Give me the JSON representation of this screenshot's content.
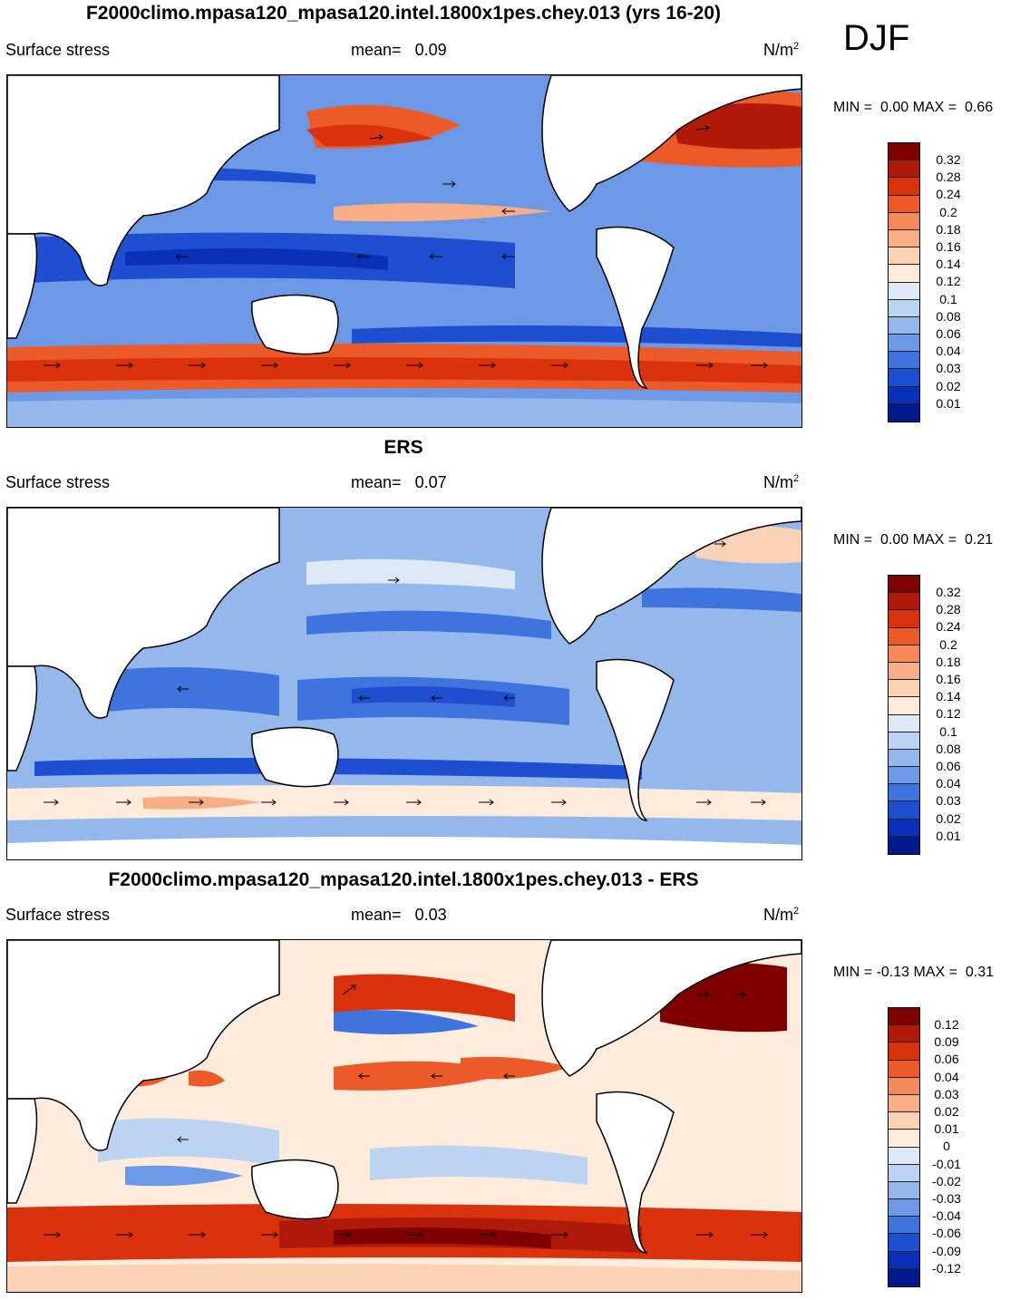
{
  "season": "DJF",
  "panels": [
    {
      "title": "F2000climo.mpasa120_mpasa120.intel.1800x1pes.chey.013 (yrs 16-20)",
      "variable": "Surface stress",
      "mean_label": "mean=",
      "mean_value": "0.09",
      "units": "N/m",
      "units_sup": "2",
      "min_label": "MIN =",
      "min_value": "0.00",
      "max_label": "MAX =",
      "max_value": "0.66",
      "colorbar_labels": [
        "0.32",
        "0.28",
        "0.24",
        "0.2",
        "0.18",
        "0.16",
        "0.14",
        "0.12",
        "0.1",
        "0.08",
        "0.06",
        "0.04",
        "0.03",
        "0.02",
        "0.01"
      ]
    },
    {
      "title": "ERS",
      "variable": "Surface stress",
      "mean_label": "mean=",
      "mean_value": "0.07",
      "units": "N/m",
      "units_sup": "2",
      "min_label": "MIN =",
      "min_value": "0.00",
      "max_label": "MAX =",
      "max_value": "0.21",
      "colorbar_labels": [
        "0.32",
        "0.28",
        "0.24",
        "0.2",
        "0.18",
        "0.16",
        "0.14",
        "0.12",
        "0.1",
        "0.08",
        "0.06",
        "0.04",
        "0.03",
        "0.02",
        "0.01"
      ]
    },
    {
      "title": "F2000climo.mpasa120_mpasa120.intel.1800x1pes.chey.013 - ERS",
      "variable": "Surface stress",
      "mean_label": "mean=",
      "mean_value": "0.03",
      "units": "N/m",
      "units_sup": "2",
      "min_label": "MIN =",
      "min_value": "-0.13",
      "max_label": "MAX =",
      "max_value": "0.31",
      "colorbar_labels": [
        "0.12",
        "0.09",
        "0.06",
        "0.04",
        "0.03",
        "0.02",
        "0.01",
        "0",
        "-0.01",
        "-0.02",
        "-0.03",
        "-0.04",
        "-0.06",
        "-0.09",
        "-0.12"
      ]
    }
  ],
  "colors": {
    "scale": [
      "#7f0000",
      "#b01a0a",
      "#d9320d",
      "#ec5a2a",
      "#f5895a",
      "#f9ad86",
      "#fcd2b6",
      "#fdebdc",
      "#dde9f7",
      "#bcd3f2",
      "#94b7ec",
      "#6c98e6",
      "#3f73dd",
      "#1d4fd0",
      "#0a2fb8",
      "#001a8c"
    ],
    "land": "#ffffff",
    "coast": "#000000"
  }
}
